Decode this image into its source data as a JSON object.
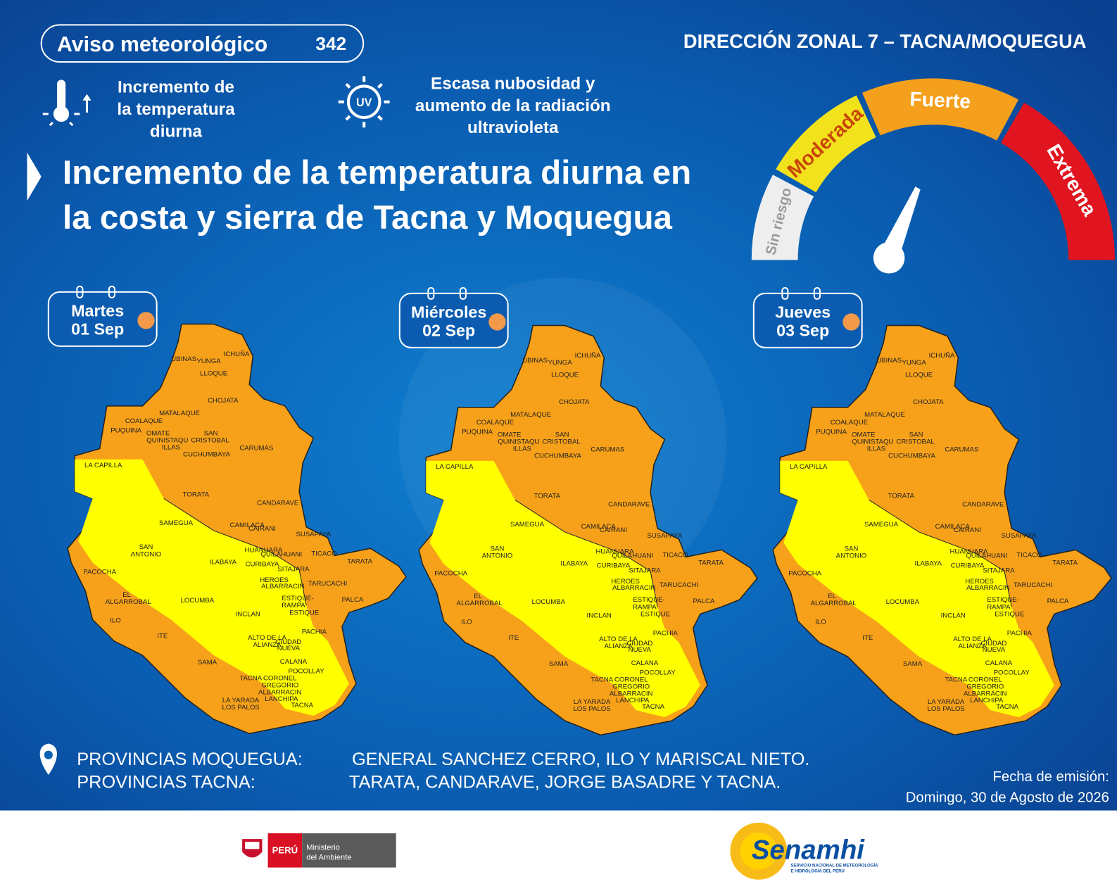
{
  "header": {
    "badge_title": "Aviso meteorológico",
    "badge_number": "342",
    "office": "DIRECCIÓN ZONAL 7 – TACNA/MOQUEGUA"
  },
  "phenomena": [
    {
      "lines": [
        "Incremento de",
        "la temperatura",
        "diurna"
      ]
    },
    {
      "icon_text": "UV",
      "lines": [
        "Escasa nubosidad y",
        "aumento de la radiación",
        "ultravioleta"
      ]
    }
  ],
  "headline": [
    "Incremento de la temperatura diurna en",
    "la costa y sierra de Tacna y Moquegua"
  ],
  "gauge": {
    "levels": [
      "Sin riesgo",
      "Moderada",
      "Fuerte",
      "Extrema"
    ]
  },
  "days": [
    {
      "weekday": "Martes",
      "date": "01 Sep"
    },
    {
      "weekday": "Miércoles",
      "date": "02 Sep"
    },
    {
      "weekday": "Jueves",
      "date": "03 Sep"
    }
  ],
  "districts": [
    "UBINAS",
    "YUNGA",
    "ICHUÑA",
    "LLOQUE",
    "CHOJATA",
    "MATALAQUE",
    "COALAQUE",
    "PUQUINA",
    "OMATE",
    "SAN",
    "QUINISTAQU",
    "CRISTOBAL",
    "ILLAS",
    "CUCHUMBAYA",
    "CARUMAS",
    "LA CAPILLA",
    "TORATA",
    "CANDARAVE",
    "SAMEGUA",
    "CAMILACA",
    "CAIRANI",
    "SUSAPAYA",
    "SAN",
    "ANTONIO",
    "HUANUARA",
    "QUILAHUANI",
    "TICACO",
    "ILABAYA",
    "CURIBAYA",
    "TARATA",
    "SITAJARA",
    "PACOCHA",
    "HEROES",
    "ALBARRACIN",
    "TARUCACHI",
    "EL",
    "ALGARROBAL",
    "LOCUMBA",
    "ESTIQUE-",
    "PALCA",
    "RAMPA",
    "ESTIQUE",
    "INCLAN",
    "ILO",
    "PACHIA",
    "ITE",
    "ALTO DE LA",
    "CIUDAD",
    "ALIANZA",
    "NUEVA",
    "CALANA",
    "SAMA",
    "POCOLLAY",
    "TACNA",
    "CORONEL",
    "GREGORIO",
    "ALBARRACIN",
    "LA YARADA",
    "LANCHIPA",
    "LOS PALOS",
    "TACNA"
  ],
  "provinces": [
    {
      "region": "PROVINCIAS MOQUEGUA:",
      "list": "GENERAL SANCHEZ CERRO, ILO Y MARISCAL NIETO."
    },
    {
      "region": "PROVINCIAS TACNA:",
      "list": "TARATA, CANDARAVE, JORGE BASADRE Y TACNA."
    }
  ],
  "issued": {
    "label": "Fecha de emisión:",
    "date": "Domingo, 30 de Agosto de 2026"
  },
  "footer": {
    "country": "PERÚ",
    "ministry": [
      "Ministerio",
      "del Ambiente"
    ],
    "logo": "Senamhi",
    "logo_sub": [
      "SERVICIO NACIONAL DE METEOROLOGÍA",
      "E HIDROLOGÍA DEL PERÚ"
    ]
  }
}
